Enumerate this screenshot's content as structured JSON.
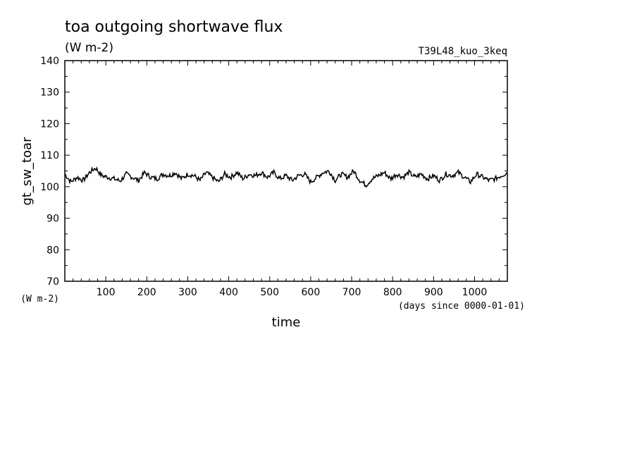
{
  "chart_data": {
    "type": "line",
    "title": "toa outgoing shortwave flux",
    "units": "(W m-2)",
    "experiment": "T39L48_kuo_3keq",
    "ylabel": "gt_sw_toar",
    "yunits": "(W m-2)",
    "xlabel": "time",
    "xunits": "(days since 0000-01-01)",
    "xlim": [
      0,
      1080
    ],
    "ylim": [
      70,
      140
    ],
    "xticks": [
      100,
      200,
      300,
      400,
      500,
      600,
      700,
      800,
      900,
      1000
    ],
    "yticks": [
      70,
      80,
      90,
      100,
      110,
      120,
      130,
      140
    ],
    "grid": false,
    "series": [
      {
        "x": [
          0,
          15,
          30,
          45,
          60,
          75,
          90,
          105,
          120,
          135,
          150,
          165,
          180,
          195,
          210,
          225,
          240,
          255,
          270,
          285,
          300,
          315,
          330,
          345,
          360,
          375,
          390,
          405,
          420,
          435,
          450,
          465,
          480,
          495,
          510,
          525,
          540,
          555,
          570,
          585,
          600,
          615,
          630,
          645,
          660,
          675,
          690,
          705,
          720,
          735,
          750,
          765,
          780,
          795,
          810,
          825,
          840,
          855,
          870,
          885,
          900,
          915,
          930,
          945,
          960,
          975,
          990,
          1005,
          1020,
          1035,
          1050,
          1065,
          1080
        ],
        "values": [
          104.0,
          101.5,
          103.0,
          102.0,
          104.5,
          106.0,
          103.5,
          103.0,
          102.5,
          101.8,
          104.0,
          103.0,
          102.0,
          104.5,
          103.0,
          102.5,
          104.0,
          103.5,
          104.5,
          102.5,
          104.0,
          103.5,
          102.0,
          104.5,
          103.0,
          101.5,
          104.0,
          103.0,
          104.5,
          102.5,
          104.0,
          103.5,
          104.5,
          103.0,
          104.5,
          102.5,
          103.5,
          102.0,
          103.5,
          104.0,
          101.5,
          103.0,
          104.5,
          105.0,
          102.0,
          104.0,
          103.0,
          105.0,
          102.0,
          100.5,
          102.5,
          103.5,
          104.5,
          102.5,
          104.0,
          103.0,
          104.5,
          103.0,
          104.0,
          102.5,
          103.5,
          102.0,
          104.0,
          103.5,
          104.5,
          103.0,
          101.5,
          104.0,
          103.0,
          102.0,
          102.5,
          103.5,
          104.5
        ]
      }
    ]
  }
}
